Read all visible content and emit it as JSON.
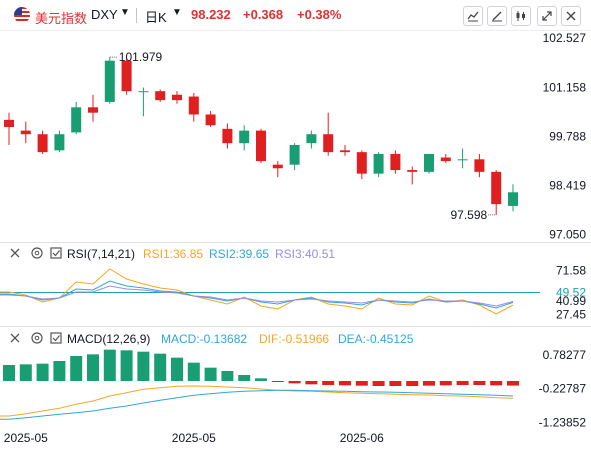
{
  "header": {
    "name": "美元指数",
    "symbol": "DXY",
    "timeframe": "日K",
    "price": "98.232",
    "change": "+0.368",
    "change_pct": "+0.38%"
  },
  "colors": {
    "up": "#199E73",
    "down": "#E02020",
    "rsi1": "#F5A623",
    "rsi2": "#2FA8D8",
    "rsi3": "#9B8CE0",
    "dif": "#F5A623",
    "dea": "#2FA8D8",
    "rsi_ref": "#1E9EAF"
  },
  "chart_data": [
    {
      "type": "candlestick",
      "ylim": [
        96.9,
        102.7
      ],
      "y_ticks": [
        "102.527",
        "101.158",
        "99.788",
        "98.419",
        "97.050"
      ],
      "y_tick_values": [
        102.527,
        101.158,
        99.788,
        98.419,
        97.05
      ],
      "high_label": "101.979",
      "low_label": "97.598",
      "x_ticks": [
        "2025-05",
        "2025-05",
        "2025-06"
      ],
      "x_tick_index": [
        1,
        11,
        21
      ],
      "candles": [
        {
          "o": 100.25,
          "h": 100.45,
          "l": 99.55,
          "c": 100.05
        },
        {
          "o": 99.95,
          "h": 100.2,
          "l": 99.6,
          "c": 99.85
        },
        {
          "o": 99.85,
          "h": 99.95,
          "l": 99.3,
          "c": 99.35
        },
        {
          "o": 99.4,
          "h": 99.95,
          "l": 99.35,
          "c": 99.85
        },
        {
          "o": 99.9,
          "h": 100.75,
          "l": 99.85,
          "c": 100.6
        },
        {
          "o": 100.6,
          "h": 100.95,
          "l": 100.2,
          "c": 100.45
        },
        {
          "o": 100.75,
          "h": 102.0,
          "l": 100.7,
          "c": 101.9
        },
        {
          "o": 101.9,
          "h": 101.95,
          "l": 100.95,
          "c": 101.05
        },
        {
          "o": 101.05,
          "h": 101.15,
          "l": 100.35,
          "c": 101.05
        },
        {
          "o": 101.05,
          "h": 101.1,
          "l": 100.75,
          "c": 100.8
        },
        {
          "o": 100.95,
          "h": 101.05,
          "l": 100.7,
          "c": 100.8
        },
        {
          "o": 100.9,
          "h": 101.0,
          "l": 100.2,
          "c": 100.4
        },
        {
          "o": 100.4,
          "h": 100.5,
          "l": 100.05,
          "c": 100.1
        },
        {
          "o": 100.0,
          "h": 100.15,
          "l": 99.45,
          "c": 99.6
        },
        {
          "o": 99.6,
          "h": 100.1,
          "l": 99.4,
          "c": 99.95
        },
        {
          "o": 99.95,
          "h": 100.0,
          "l": 99.05,
          "c": 99.1
        },
        {
          "o": 99.0,
          "h": 99.1,
          "l": 98.65,
          "c": 98.9
        },
        {
          "o": 99.0,
          "h": 99.6,
          "l": 98.85,
          "c": 99.55
        },
        {
          "o": 99.6,
          "h": 99.95,
          "l": 99.45,
          "c": 99.85
        },
        {
          "o": 99.85,
          "h": 100.45,
          "l": 99.25,
          "c": 99.35
        },
        {
          "o": 99.4,
          "h": 99.55,
          "l": 99.25,
          "c": 99.35
        },
        {
          "o": 99.35,
          "h": 99.4,
          "l": 98.6,
          "c": 98.75
        },
        {
          "o": 98.75,
          "h": 99.35,
          "l": 98.65,
          "c": 99.3
        },
        {
          "o": 99.3,
          "h": 99.4,
          "l": 98.75,
          "c": 98.85
        },
        {
          "o": 98.85,
          "h": 98.95,
          "l": 98.45,
          "c": 98.8
        },
        {
          "o": 98.8,
          "h": 99.3,
          "l": 98.75,
          "c": 99.3
        },
        {
          "o": 99.2,
          "h": 99.3,
          "l": 99.05,
          "c": 99.1
        },
        {
          "o": 99.15,
          "h": 99.45,
          "l": 98.9,
          "c": 99.15
        },
        {
          "o": 99.15,
          "h": 99.3,
          "l": 98.65,
          "c": 98.8
        },
        {
          "o": 98.8,
          "h": 98.85,
          "l": 97.6,
          "c": 97.9
        },
        {
          "o": 97.85,
          "h": 98.45,
          "l": 97.7,
          "c": 98.23
        }
      ]
    },
    {
      "type": "line",
      "indicator": "RSI",
      "legend": "RSI(7,14,21)",
      "ylim": [
        18,
        80
      ],
      "y_ticks": [
        "71.58",
        "49.52",
        "40.99",
        "27.45"
      ],
      "y_tick_values": [
        71.58,
        49.52,
        40.99,
        27.45
      ],
      "ref_line": 49.52,
      "series": [
        {
          "name": "RSI1:36.85",
          "values": [
            50,
            47,
            40,
            44,
            60,
            58,
            73,
            63,
            58,
            54,
            52,
            46,
            42,
            38,
            45,
            36,
            33,
            42,
            45,
            38,
            36,
            33,
            44,
            38,
            37,
            46,
            40,
            42,
            37,
            28,
            36.85
          ]
        },
        {
          "name": "RSI2:39.65",
          "values": [
            48,
            46,
            42,
            44,
            53,
            52,
            61,
            56,
            54,
            51,
            50,
            46,
            44,
            41,
            44,
            40,
            38,
            42,
            44,
            40,
            39,
            37,
            42,
            40,
            39,
            43,
            40,
            41,
            38,
            34,
            39.65
          ]
        },
        {
          "name": "RSI3:40.51",
          "values": [
            47,
            46,
            43,
            44,
            50,
            50,
            56,
            53,
            52,
            50,
            49,
            46,
            45,
            42,
            44,
            41,
            40,
            42,
            43,
            41,
            40,
            39,
            42,
            41,
            40,
            42,
            41,
            41,
            39,
            36,
            40.51
          ]
        }
      ]
    },
    {
      "type": "bar",
      "indicator": "MACD",
      "legend": "MACD(12,26,9)",
      "ylim": [
        -1.35,
        1.05
      ],
      "y_ticks": [
        "0.78277",
        "-0.22787",
        "-1.23852"
      ],
      "y_tick_values": [
        0.78277,
        -0.22787,
        -1.23852
      ],
      "macd_label": "MACD:-0.13682",
      "dif_label": "DIF:-0.51966",
      "dea_label": "DEA:-0.45125",
      "macd": [
        0.48,
        0.5,
        0.52,
        0.6,
        0.75,
        0.8,
        0.94,
        0.92,
        0.88,
        0.82,
        0.7,
        0.55,
        0.4,
        0.3,
        0.18,
        0.08,
        -0.03,
        -0.07,
        -0.1,
        -0.12,
        -0.13,
        -0.14,
        -0.15,
        -0.15,
        -0.15,
        -0.14,
        -0.13,
        -0.12,
        -0.12,
        -0.13,
        -0.137
      ],
      "dif": [
        -1.05,
        -0.98,
        -0.9,
        -0.82,
        -0.7,
        -0.6,
        -0.45,
        -0.35,
        -0.25,
        -0.2,
        -0.16,
        -0.15,
        -0.16,
        -0.18,
        -0.2,
        -0.24,
        -0.28,
        -0.3,
        -0.31,
        -0.33,
        -0.35,
        -0.37,
        -0.38,
        -0.4,
        -0.41,
        -0.42,
        -0.44,
        -0.45,
        -0.47,
        -0.5,
        -0.52
      ],
      "dea": [
        -1.15,
        -1.1,
        -1.05,
        -1.0,
        -0.95,
        -0.9,
        -0.82,
        -0.75,
        -0.66,
        -0.58,
        -0.5,
        -0.43,
        -0.38,
        -0.34,
        -0.31,
        -0.29,
        -0.28,
        -0.28,
        -0.29,
        -0.3,
        -0.31,
        -0.32,
        -0.33,
        -0.34,
        -0.35,
        -0.37,
        -0.38,
        -0.4,
        -0.41,
        -0.43,
        -0.45
      ]
    }
  ]
}
